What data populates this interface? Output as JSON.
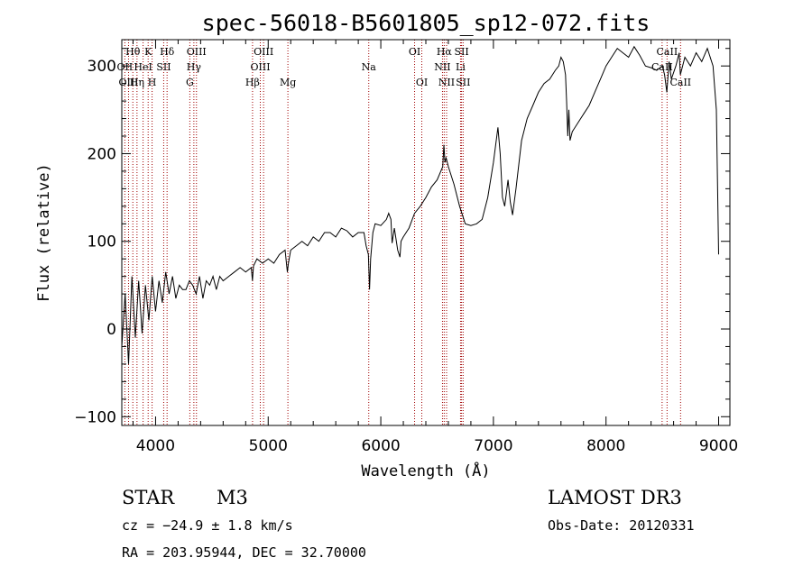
{
  "chart_data": {
    "type": "line",
    "title": "spec-56018-B5601805_sp12-072.fits",
    "xlabel": "Wavelength (Å)",
    "ylabel": "Flux (relative)",
    "xlim": [
      3700,
      9100
    ],
    "ylim": [
      -110,
      330
    ],
    "xticks": [
      4000,
      5000,
      6000,
      7000,
      8000,
      9000
    ],
    "yticks": [
      -100,
      0,
      100,
      200,
      300
    ],
    "xtick_labels": [
      "4000",
      "5000",
      "6000",
      "7000",
      "8000",
      "9000"
    ],
    "ytick_labels": [
      "−100",
      "0",
      "100",
      "200",
      "300"
    ],
    "spectrum": {
      "name": "flux",
      "x": [
        3700,
        3730,
        3760,
        3790,
        3820,
        3850,
        3880,
        3910,
        3940,
        3970,
        4000,
        4030,
        4060,
        4090,
        4120,
        4150,
        4180,
        4210,
        4240,
        4270,
        4300,
        4330,
        4360,
        4390,
        4420,
        4450,
        4480,
        4510,
        4540,
        4570,
        4600,
        4650,
        4700,
        4750,
        4800,
        4850,
        4860,
        4870,
        4900,
        4950,
        5000,
        5050,
        5100,
        5150,
        5170,
        5180,
        5200,
        5250,
        5300,
        5350,
        5400,
        5450,
        5500,
        5550,
        5600,
        5650,
        5700,
        5750,
        5800,
        5850,
        5870,
        5890,
        5900,
        5910,
        5930,
        5950,
        6000,
        6050,
        6070,
        6090,
        6100,
        6120,
        6150,
        6170,
        6180,
        6200,
        6250,
        6300,
        6350,
        6400,
        6450,
        6500,
        6550,
        6560,
        6570,
        6580,
        6600,
        6650,
        6700,
        6750,
        6800,
        6850,
        6900,
        6950,
        7000,
        7020,
        7040,
        7060,
        7080,
        7100,
        7130,
        7150,
        7170,
        7200,
        7250,
        7300,
        7350,
        7400,
        7450,
        7500,
        7550,
        7580,
        7600,
        7620,
        7640,
        7650,
        7660,
        7670,
        7680,
        7700,
        7750,
        7800,
        7850,
        7900,
        7950,
        8000,
        8050,
        8100,
        8150,
        8200,
        8250,
        8300,
        8350,
        8400,
        8450,
        8500,
        8520,
        8540,
        8560,
        8580,
        8620,
        8650,
        8660,
        8700,
        8750,
        8800,
        8850,
        8900,
        8950,
        8980,
        9000
      ],
      "y": [
        -20,
        40,
        -40,
        60,
        -10,
        55,
        -5,
        50,
        10,
        60,
        20,
        55,
        30,
        65,
        40,
        60,
        35,
        50,
        45,
        45,
        55,
        50,
        40,
        60,
        35,
        55,
        50,
        60,
        45,
        60,
        55,
        60,
        65,
        70,
        65,
        70,
        55,
        72,
        80,
        75,
        80,
        75,
        85,
        90,
        65,
        75,
        90,
        95,
        100,
        95,
        105,
        100,
        110,
        110,
        105,
        115,
        112,
        105,
        110,
        110,
        95,
        85,
        45,
        80,
        110,
        120,
        118,
        125,
        132,
        125,
        98,
        115,
        90,
        82,
        100,
        105,
        115,
        132,
        140,
        150,
        162,
        170,
        185,
        210,
        190,
        195,
        185,
        165,
        140,
        120,
        118,
        120,
        125,
        150,
        190,
        210,
        230,
        200,
        150,
        140,
        170,
        145,
        130,
        160,
        215,
        240,
        255,
        270,
        280,
        285,
        295,
        300,
        310,
        305,
        290,
        260,
        220,
        250,
        215,
        225,
        235,
        245,
        255,
        270,
        285,
        300,
        310,
        320,
        315,
        310,
        322,
        312,
        300,
        298,
        295,
        300,
        290,
        270,
        305,
        285,
        300,
        315,
        290,
        310,
        300,
        315,
        305,
        320,
        300,
        250,
        85
      ]
    },
    "lines": [
      {
        "label": "Hθ",
        "x": 3798,
        "row": 0
      },
      {
        "label": "OII",
        "x": 3727,
        "row": 1
      },
      {
        "label": "OIII",
        "x": 3760,
        "row": 2
      },
      {
        "label": "Hη",
        "x": 3835,
        "row": 2
      },
      {
        "label": "HeI",
        "x": 3889,
        "row": 1
      },
      {
        "label": "K",
        "x": 3934,
        "row": 0
      },
      {
        "label": "H",
        "x": 3969,
        "row": 2
      },
      {
        "label": "SII",
        "x": 4072,
        "row": 1
      },
      {
        "label": "Hδ",
        "x": 4102,
        "row": 0
      },
      {
        "label": "OIII",
        "x": 4363,
        "row": 0
      },
      {
        "label": "Hγ",
        "x": 4340,
        "row": 1
      },
      {
        "label": "G",
        "x": 4304,
        "row": 2
      },
      {
        "label": "Hβ",
        "x": 4861,
        "row": 2
      },
      {
        "label": "OIII",
        "x": 4959,
        "row": 0
      },
      {
        "label": "OIII",
        "x": 4930,
        "row": 1
      },
      {
        "label": "Mg",
        "x": 5175,
        "row": 2
      },
      {
        "label": "Na",
        "x": 5893,
        "row": 1
      },
      {
        "label": "OI",
        "x": 6300,
        "row": 0
      },
      {
        "label": "OI",
        "x": 6364,
        "row": 2
      },
      {
        "label": "Hα",
        "x": 6563,
        "row": 0
      },
      {
        "label": "NII",
        "x": 6548,
        "row": 1
      },
      {
        "label": "NII",
        "x": 6584,
        "row": 2
      },
      {
        "label": "SII",
        "x": 6717,
        "row": 0
      },
      {
        "label": "Li",
        "x": 6708,
        "row": 1
      },
      {
        "label": "SII",
        "x": 6731,
        "row": 2
      },
      {
        "label": "CaII",
        "x": 8542,
        "row": 0
      },
      {
        "label": "CaII",
        "x": 8498,
        "row": 1
      },
      {
        "label": "CaII",
        "x": 8662,
        "row": 2
      }
    ],
    "line_color": "#a00000",
    "spectrum_color": "#000000"
  },
  "footer": {
    "class_label": "STAR",
    "subclass": "M3",
    "survey": "LAMOST DR3",
    "cz": "cz = −24.9 ± 1.8 km/s",
    "obs_date": "Obs-Date: 20120331",
    "coords": "RA = 203.95944, DEC =  32.70000"
  }
}
